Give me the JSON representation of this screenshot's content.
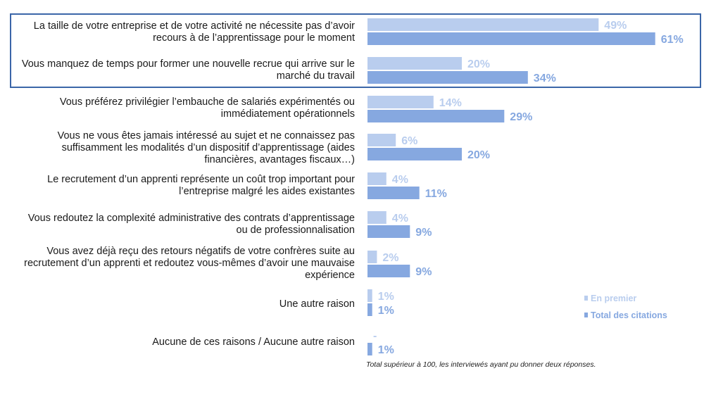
{
  "colors": {
    "premier": "#b9cdee",
    "total": "#86a8e0",
    "premier_text": "#b9cdee",
    "total_text": "#86a8e0",
    "box": "#3b66a8"
  },
  "legend": {
    "premier": "En premier",
    "total": "Total des citations"
  },
  "footnote": "Total supérieur à 100, les interviewés ayant pu donner deux réponses.",
  "chart_data": {
    "type": "bar",
    "orientation": "horizontal",
    "xlim": [
      0,
      100
    ],
    "categories": [
      "La taille de votre entreprise et de votre activité ne nécessite pas d’avoir recours à de l’apprentissage pour le moment",
      "Vous manquez de temps pour former une nouvelle recrue qui arrive sur le marché du travail",
      "Vous préférez privilégier l’embauche de salariés expérimentés ou immédiatement opérationnels",
      "Vous ne vous êtes jamais intéressé au sujet et ne connaissez pas suffisamment les modalités d’un dispositif d’apprentissage (aides financières, avantages fiscaux…)",
      "Le recrutement d’un apprenti représente un coût trop important pour l’entreprise malgré les aides existantes",
      "Vous redoutez la complexité administrative des contrats d’apprentissage ou de professionnalisation",
      "Vous avez déjà reçu des retours négatifs de votre confrères suite au recrutement d’un apprenti et redoutez vous-mêmes d’avoir une mauvaise expérience",
      "Une autre raison",
      "Aucune de ces raisons / Aucune autre raison"
    ],
    "series": [
      {
        "name": "En premier",
        "values": [
          49,
          20,
          14,
          6,
          4,
          4,
          2,
          1,
          null
        ],
        "labels": [
          "49%",
          "20%",
          "14%",
          "6%",
          "4%",
          "4%",
          "2%",
          "1%",
          "-"
        ]
      },
      {
        "name": "Total des citations",
        "values": [
          61,
          34,
          29,
          20,
          11,
          9,
          9,
          1,
          1
        ],
        "labels": [
          "61%",
          "34%",
          "29%",
          "20%",
          "11%",
          "9%",
          "9%",
          "1%",
          "1%"
        ]
      }
    ],
    "highlighted_categories": [
      0,
      1
    ],
    "legend_position": "right"
  }
}
